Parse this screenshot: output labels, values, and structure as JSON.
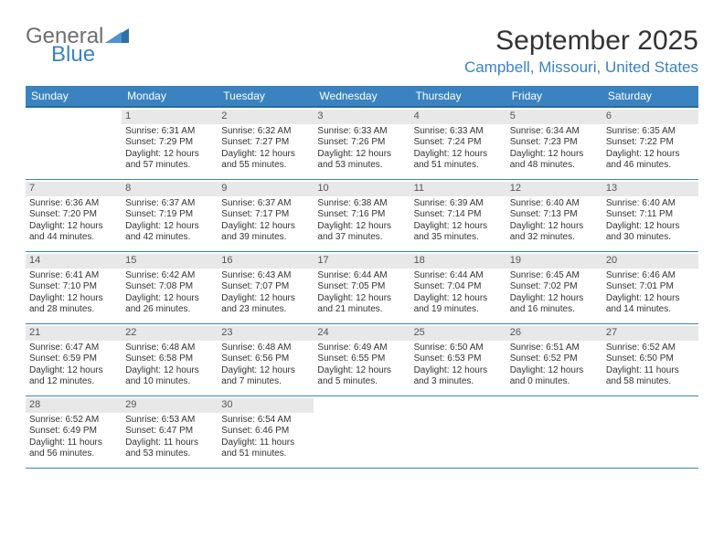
{
  "brand": {
    "part1": "General",
    "part2": "Blue"
  },
  "title": {
    "month": "September 2025",
    "location": "Campbell, Missouri, United States"
  },
  "colors": {
    "header_bg": "#3b83c0",
    "header_border": "#27699e",
    "week_border": "#3b83c0",
    "daynum_bg": "#e8e8e8",
    "text": "#333333",
    "logo_gray": "#6e6e6e",
    "logo_blue": "#3b83c0",
    "background": "#ffffff"
  },
  "typography": {
    "month_title_pt": 30,
    "location_pt": 17,
    "header_pt": 12,
    "daynum_pt": 11,
    "body_pt": 10,
    "logo_pt": 24
  },
  "dayNames": [
    "Sunday",
    "Monday",
    "Tuesday",
    "Wednesday",
    "Thursday",
    "Friday",
    "Saturday"
  ],
  "layout": {
    "columns": 7,
    "rows": 5
  },
  "weeks": [
    [
      null,
      {
        "d": "1",
        "sr": "Sunrise: 6:31 AM",
        "ss": "Sunset: 7:29 PM",
        "dl": "Daylight: 12 hours and 57 minutes."
      },
      {
        "d": "2",
        "sr": "Sunrise: 6:32 AM",
        "ss": "Sunset: 7:27 PM",
        "dl": "Daylight: 12 hours and 55 minutes."
      },
      {
        "d": "3",
        "sr": "Sunrise: 6:33 AM",
        "ss": "Sunset: 7:26 PM",
        "dl": "Daylight: 12 hours and 53 minutes."
      },
      {
        "d": "4",
        "sr": "Sunrise: 6:33 AM",
        "ss": "Sunset: 7:24 PM",
        "dl": "Daylight: 12 hours and 51 minutes."
      },
      {
        "d": "5",
        "sr": "Sunrise: 6:34 AM",
        "ss": "Sunset: 7:23 PM",
        "dl": "Daylight: 12 hours and 48 minutes."
      },
      {
        "d": "6",
        "sr": "Sunrise: 6:35 AM",
        "ss": "Sunset: 7:22 PM",
        "dl": "Daylight: 12 hours and 46 minutes."
      }
    ],
    [
      {
        "d": "7",
        "sr": "Sunrise: 6:36 AM",
        "ss": "Sunset: 7:20 PM",
        "dl": "Daylight: 12 hours and 44 minutes."
      },
      {
        "d": "8",
        "sr": "Sunrise: 6:37 AM",
        "ss": "Sunset: 7:19 PM",
        "dl": "Daylight: 12 hours and 42 minutes."
      },
      {
        "d": "9",
        "sr": "Sunrise: 6:37 AM",
        "ss": "Sunset: 7:17 PM",
        "dl": "Daylight: 12 hours and 39 minutes."
      },
      {
        "d": "10",
        "sr": "Sunrise: 6:38 AM",
        "ss": "Sunset: 7:16 PM",
        "dl": "Daylight: 12 hours and 37 minutes."
      },
      {
        "d": "11",
        "sr": "Sunrise: 6:39 AM",
        "ss": "Sunset: 7:14 PM",
        "dl": "Daylight: 12 hours and 35 minutes."
      },
      {
        "d": "12",
        "sr": "Sunrise: 6:40 AM",
        "ss": "Sunset: 7:13 PM",
        "dl": "Daylight: 12 hours and 32 minutes."
      },
      {
        "d": "13",
        "sr": "Sunrise: 6:40 AM",
        "ss": "Sunset: 7:11 PM",
        "dl": "Daylight: 12 hours and 30 minutes."
      }
    ],
    [
      {
        "d": "14",
        "sr": "Sunrise: 6:41 AM",
        "ss": "Sunset: 7:10 PM",
        "dl": "Daylight: 12 hours and 28 minutes."
      },
      {
        "d": "15",
        "sr": "Sunrise: 6:42 AM",
        "ss": "Sunset: 7:08 PM",
        "dl": "Daylight: 12 hours and 26 minutes."
      },
      {
        "d": "16",
        "sr": "Sunrise: 6:43 AM",
        "ss": "Sunset: 7:07 PM",
        "dl": "Daylight: 12 hours and 23 minutes."
      },
      {
        "d": "17",
        "sr": "Sunrise: 6:44 AM",
        "ss": "Sunset: 7:05 PM",
        "dl": "Daylight: 12 hours and 21 minutes."
      },
      {
        "d": "18",
        "sr": "Sunrise: 6:44 AM",
        "ss": "Sunset: 7:04 PM",
        "dl": "Daylight: 12 hours and 19 minutes."
      },
      {
        "d": "19",
        "sr": "Sunrise: 6:45 AM",
        "ss": "Sunset: 7:02 PM",
        "dl": "Daylight: 12 hours and 16 minutes."
      },
      {
        "d": "20",
        "sr": "Sunrise: 6:46 AM",
        "ss": "Sunset: 7:01 PM",
        "dl": "Daylight: 12 hours and 14 minutes."
      }
    ],
    [
      {
        "d": "21",
        "sr": "Sunrise: 6:47 AM",
        "ss": "Sunset: 6:59 PM",
        "dl": "Daylight: 12 hours and 12 minutes."
      },
      {
        "d": "22",
        "sr": "Sunrise: 6:48 AM",
        "ss": "Sunset: 6:58 PM",
        "dl": "Daylight: 12 hours and 10 minutes."
      },
      {
        "d": "23",
        "sr": "Sunrise: 6:48 AM",
        "ss": "Sunset: 6:56 PM",
        "dl": "Daylight: 12 hours and 7 minutes."
      },
      {
        "d": "24",
        "sr": "Sunrise: 6:49 AM",
        "ss": "Sunset: 6:55 PM",
        "dl": "Daylight: 12 hours and 5 minutes."
      },
      {
        "d": "25",
        "sr": "Sunrise: 6:50 AM",
        "ss": "Sunset: 6:53 PM",
        "dl": "Daylight: 12 hours and 3 minutes."
      },
      {
        "d": "26",
        "sr": "Sunrise: 6:51 AM",
        "ss": "Sunset: 6:52 PM",
        "dl": "Daylight: 12 hours and 0 minutes."
      },
      {
        "d": "27",
        "sr": "Sunrise: 6:52 AM",
        "ss": "Sunset: 6:50 PM",
        "dl": "Daylight: 11 hours and 58 minutes."
      }
    ],
    [
      {
        "d": "28",
        "sr": "Sunrise: 6:52 AM",
        "ss": "Sunset: 6:49 PM",
        "dl": "Daylight: 11 hours and 56 minutes."
      },
      {
        "d": "29",
        "sr": "Sunrise: 6:53 AM",
        "ss": "Sunset: 6:47 PM",
        "dl": "Daylight: 11 hours and 53 minutes."
      },
      {
        "d": "30",
        "sr": "Sunrise: 6:54 AM",
        "ss": "Sunset: 6:46 PM",
        "dl": "Daylight: 11 hours and 51 minutes."
      },
      null,
      null,
      null,
      null
    ]
  ]
}
